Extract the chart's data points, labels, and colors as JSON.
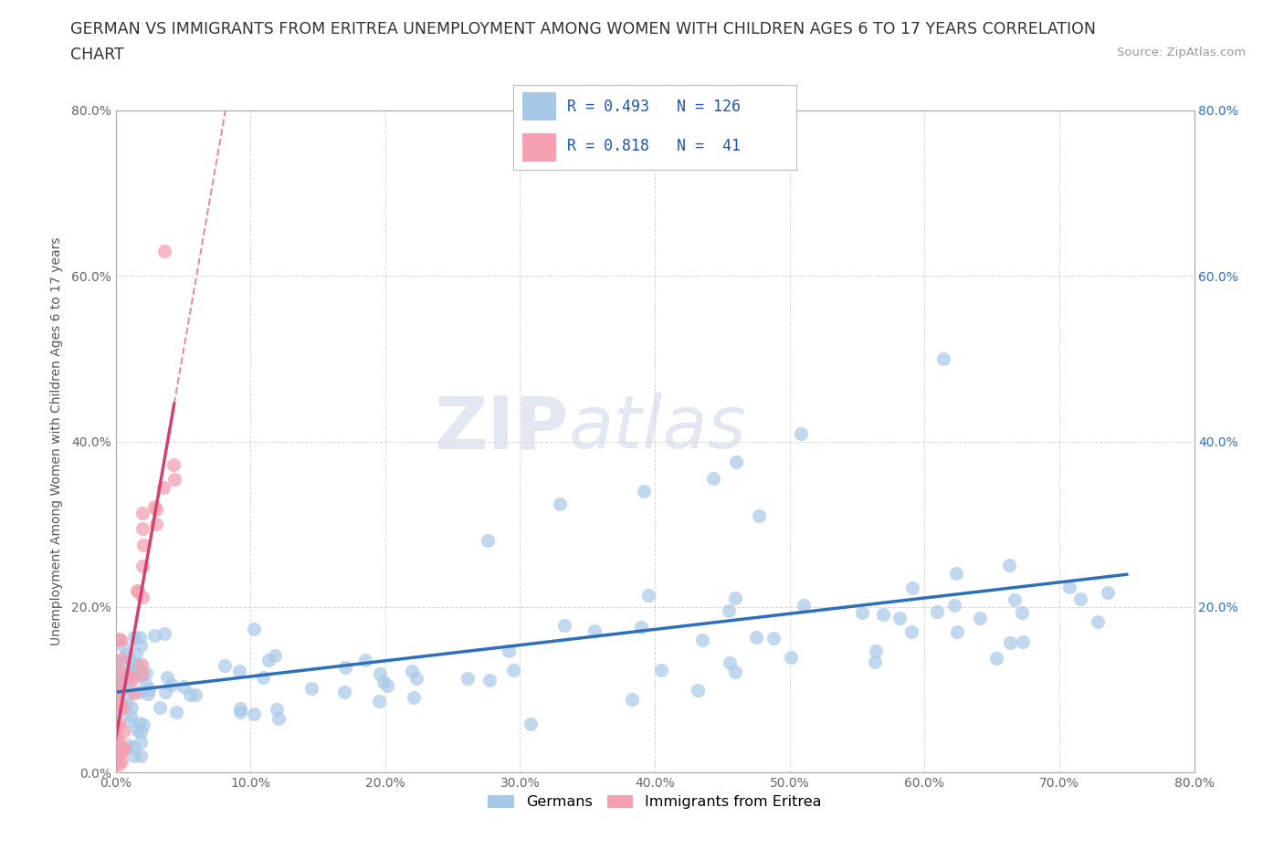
{
  "title_line1": "GERMAN VS IMMIGRANTS FROM ERITREA UNEMPLOYMENT AMONG WOMEN WITH CHILDREN AGES 6 TO 17 YEARS CORRELATION",
  "title_line2": "CHART",
  "source": "Source: ZipAtlas.com",
  "ylabel": "Unemployment Among Women with Children Ages 6 to 17 years",
  "xlim": [
    0.0,
    0.8
  ],
  "ylim": [
    0.0,
    0.8
  ],
  "xticks": [
    0.0,
    0.1,
    0.2,
    0.3,
    0.4,
    0.5,
    0.6,
    0.7,
    0.8
  ],
  "xtick_labels": [
    "0.0%",
    "10.0%",
    "20.0%",
    "30.0%",
    "40.0%",
    "50.0%",
    "60.0%",
    "70.0%",
    "80.0%"
  ],
  "ytick_labels": [
    "0.0%",
    "20.0%",
    "40.0%",
    "60.0%",
    "80.0%"
  ],
  "yticks": [
    0.0,
    0.2,
    0.4,
    0.6,
    0.8
  ],
  "right_ytick_labels": [
    "20.0%",
    "40.0%",
    "60.0%",
    "80.0%"
  ],
  "right_yticks": [
    0.2,
    0.4,
    0.6,
    0.8
  ],
  "german_color": "#a8c8e8",
  "eritrea_color": "#f4a0b0",
  "german_line_color": "#2e6fba",
  "eritrea_line_color": "#d44070",
  "german_R": 0.493,
  "german_N": 126,
  "eritrea_R": 0.818,
  "eritrea_N": 41,
  "watermark_zip": "ZIP",
  "watermark_atlas": "atlas",
  "legend_labels": [
    "Germans",
    "Immigrants from Eritrea"
  ],
  "background_color": "#ffffff",
  "grid_color": "#cccccc",
  "title_color": "#333333",
  "legend_text_color": "#2255aa",
  "axis_color": "#aaaaaa"
}
